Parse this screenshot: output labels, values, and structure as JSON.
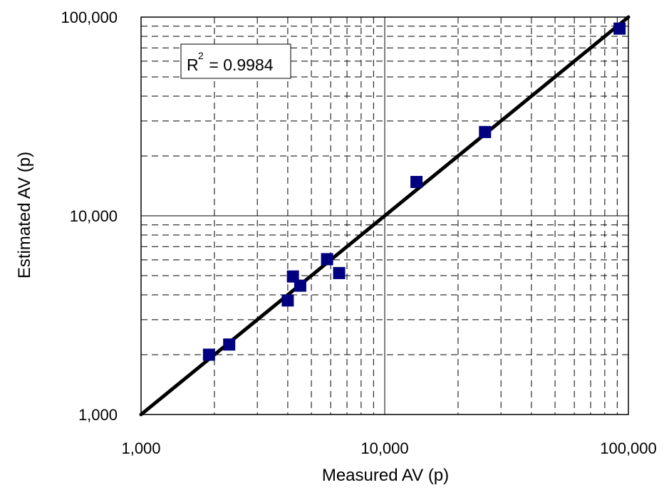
{
  "chart_data": {
    "type": "scatter",
    "title": "",
    "xlabel": "Measured AV (p)",
    "ylabel": "Estimated AV (p)",
    "x_scale": "log",
    "y_scale": "log",
    "xlim": [
      1000,
      100000
    ],
    "ylim": [
      1000,
      100000
    ],
    "x_ticks": [
      1000,
      10000,
      100000
    ],
    "y_ticks": [
      1000,
      10000,
      100000
    ],
    "x_tick_labels": [
      "1,000",
      "10,000",
      "100,000"
    ],
    "y_tick_labels": [
      "1,000",
      "10,000",
      "100,000"
    ],
    "grid": true,
    "minor_grid": "dashed",
    "annotation": {
      "prefix": "R",
      "sup": "2",
      "text": " = 0.9984"
    },
    "points": [
      {
        "x": 1900,
        "y": 2000
      },
      {
        "x": 2300,
        "y": 2250
      },
      {
        "x": 4000,
        "y": 3750
      },
      {
        "x": 4200,
        "y": 4950
      },
      {
        "x": 4500,
        "y": 4450
      },
      {
        "x": 5800,
        "y": 6050
      },
      {
        "x": 6500,
        "y": 5150
      },
      {
        "x": 13500,
        "y": 14800
      },
      {
        "x": 25800,
        "y": 26400
      },
      {
        "x": 92000,
        "y": 87500
      }
    ],
    "fit_line": {
      "x": [
        1000,
        100000
      ],
      "y": [
        1000,
        100000
      ]
    },
    "colors": {
      "marker": "#000080",
      "line": "#000000",
      "grid": "#000000"
    }
  }
}
